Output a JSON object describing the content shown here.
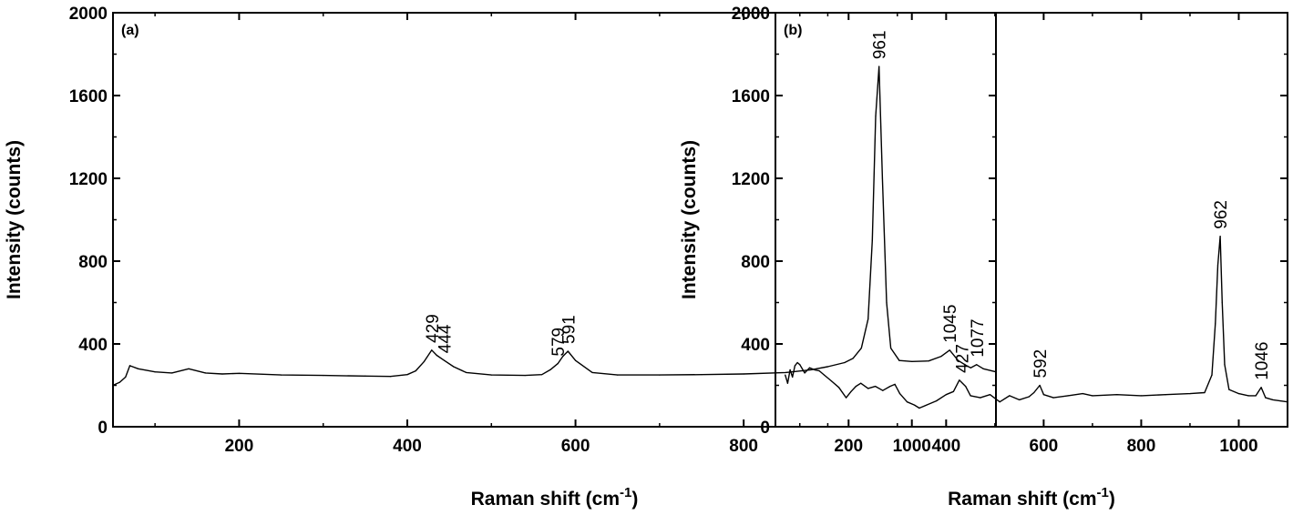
{
  "chart_data": [
    {
      "type": "line",
      "panel_label": "(a)",
      "xlabel": "Raman shift (cm",
      "xlabel_sup": "-1",
      "xlabel_end": ")",
      "ylabel": "Intensity (counts)",
      "xlim": [
        50,
        1100
      ],
      "ylim": [
        0,
        2000
      ],
      "xticks": [
        "200",
        "400",
        "600",
        "800",
        "1000"
      ],
      "yticks": [
        "0",
        "400",
        "800",
        "1200",
        "1600",
        "2000"
      ],
      "grid": false,
      "series": [
        {
          "x": [
            50,
            58,
            65,
            70,
            80,
            100,
            120,
            140,
            160,
            180,
            200,
            250,
            300,
            350,
            380,
            400,
            410,
            420,
            429,
            435,
            444,
            455,
            470,
            500,
            540,
            560,
            570,
            579,
            585,
            591,
            600,
            620,
            650,
            700,
            750,
            800,
            850,
            880,
            900,
            920,
            930,
            940,
            948,
            953,
            957,
            961,
            965,
            970,
            975,
            985,
            1000,
            1020,
            1035,
            1045,
            1055,
            1065,
            1070,
            1077,
            1085,
            1095,
            1100
          ],
          "y": [
            200,
            215,
            240,
            295,
            280,
            265,
            260,
            280,
            260,
            255,
            258,
            250,
            248,
            245,
            243,
            252,
            270,
            315,
            370,
            345,
            320,
            290,
            262,
            250,
            248,
            252,
            275,
            305,
            340,
            365,
            320,
            262,
            250,
            250,
            252,
            255,
            262,
            275,
            290,
            310,
            330,
            380,
            520,
            900,
            1500,
            1740,
            1200,
            600,
            380,
            320,
            315,
            318,
            340,
            370,
            320,
            295,
            285,
            300,
            280,
            270,
            265
          ]
        }
      ],
      "annotations": [
        {
          "text": "429",
          "x": 429,
          "y": 370
        },
        {
          "text": "444",
          "x": 444,
          "y": 320
        },
        {
          "text": "579",
          "x": 579,
          "y": 305
        },
        {
          "text": "591",
          "x": 591,
          "y": 365
        },
        {
          "text": "961",
          "x": 961,
          "y": 1740
        },
        {
          "text": "1045",
          "x": 1045,
          "y": 370
        },
        {
          "text": "1077",
          "x": 1077,
          "y": 300
        }
      ]
    },
    {
      "type": "line",
      "panel_label": "(b)",
      "xlabel": "Raman shift (cm",
      "xlabel_sup": "-1",
      "xlabel_end": ")",
      "ylabel": "Intensity (counts)",
      "xlim": [
        50,
        1100
      ],
      "ylim": [
        0,
        2000
      ],
      "xticks": [
        "200",
        "400",
        "600",
        "800",
        "1000"
      ],
      "yticks": [
        "0",
        "400",
        "800",
        "1200",
        "1600",
        "2000"
      ],
      "grid": false,
      "series": [
        {
          "x": [
            70,
            75,
            80,
            85,
            90,
            95,
            100,
            110,
            120,
            130,
            140,
            150,
            165,
            180,
            195,
            205,
            215,
            225,
            240,
            255,
            270,
            285,
            295,
            305,
            320,
            335,
            345,
            360,
            380,
            400,
            415,
            427,
            440,
            450,
            470,
            490,
            510,
            530,
            550,
            570,
            580,
            592,
            600,
            620,
            650,
            680,
            700,
            750,
            800,
            850,
            900,
            930,
            945,
            952,
            957,
            962,
            966,
            971,
            980,
            1000,
            1020,
            1035,
            1046,
            1055,
            1070,
            1085,
            1100
          ],
          "y": [
            250,
            210,
            275,
            240,
            295,
            310,
            300,
            260,
            285,
            275,
            270,
            250,
            220,
            190,
            140,
            170,
            195,
            210,
            185,
            195,
            175,
            195,
            205,
            160,
            120,
            105,
            90,
            105,
            125,
            155,
            170,
            225,
            195,
            150,
            140,
            155,
            120,
            150,
            130,
            145,
            165,
            200,
            155,
            140,
            150,
            160,
            150,
            155,
            150,
            155,
            160,
            165,
            250,
            500,
            780,
            920,
            600,
            300,
            180,
            160,
            150,
            150,
            190,
            140,
            130,
            125,
            120
          ]
        }
      ],
      "annotations": [
        {
          "text": "427",
          "x": 432,
          "y": 225
        },
        {
          "text": "592",
          "x": 592,
          "y": 200
        },
        {
          "text": "962",
          "x": 962,
          "y": 920
        },
        {
          "text": "1046",
          "x": 1046,
          "y": 190
        }
      ]
    }
  ]
}
